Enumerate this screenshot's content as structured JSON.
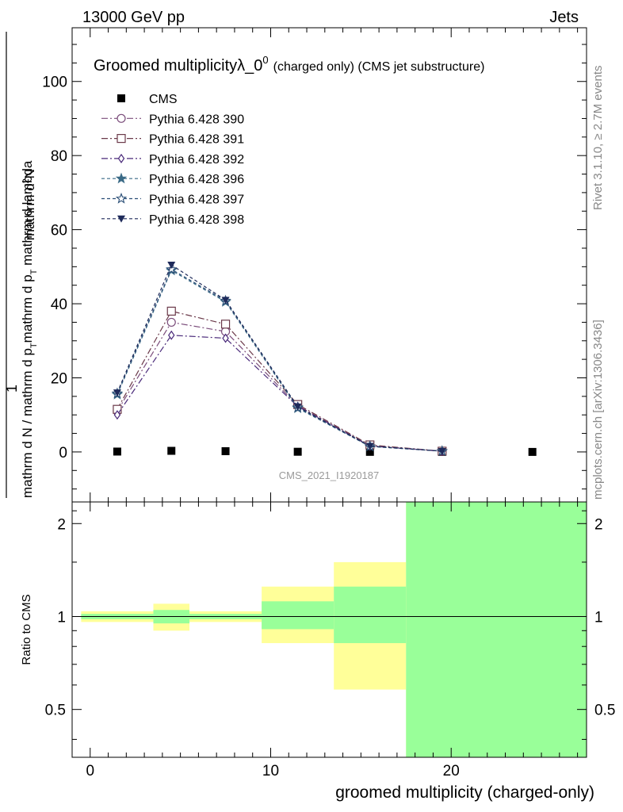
{
  "header": {
    "left": "13000 GeV pp",
    "right": "Jets"
  },
  "side_labels": {
    "rivet": "Rivet 3.1.10, ≥ 2.7M events",
    "mcplots": "mcplots.cern.ch [arXiv:1306.3436]"
  },
  "watermark": "CMS_2021_I1920187",
  "chart_data": [
    {
      "type": "line",
      "title": "Groomed multiplicityλ_0",
      "title_sup": "0",
      "subtitle": "(charged only) (CMS jet substructure)",
      "ylabel_top": "1",
      "ylabel_num": "mathrm d",
      "ylabel_num_sup": "2",
      "ylabel_num_tail": "N",
      "ylabel_den": "mathrm d N / mathrm d p",
      "ylabel_den_sub": "T",
      "ylabel_den_tail": "mathrm d p",
      "ylabel_den_sub2": "T",
      "ylabel_den_end": " mathrm d lambda",
      "xlim": [
        -1,
        27.5
      ],
      "ylim": [
        -13.5,
        114.5
      ],
      "yticks": [
        0,
        20,
        40,
        60,
        80,
        100
      ],
      "yticklabels": [
        "0",
        "20",
        "40",
        "60",
        "80",
        "100"
      ],
      "legend": "top-left",
      "series": [
        {
          "name": "CMS",
          "color": "#000000",
          "marker": "square-filled",
          "x": [
            1.5,
            4.5,
            7.5,
            11.5,
            15.5,
            19.5,
            24.5
          ],
          "y": [
            0.1,
            0.3,
            0.2,
            0.05,
            0.02,
            0.01,
            0.005
          ]
        },
        {
          "name": "Pythia 6.428 390",
          "color": "#7b4d7b",
          "marker": "circle-open",
          "dash": "8,3,2,3",
          "x": [
            1.5,
            4.5,
            7.5,
            11.5,
            15.5,
            19.5
          ],
          "y": [
            11.0,
            35.0,
            32.5,
            12.5,
            1.7,
            0.2
          ]
        },
        {
          "name": "Pythia 6.428 391",
          "color": "#6b3a4a",
          "marker": "square-open",
          "dash": "8,3,2,3",
          "x": [
            1.5,
            4.5,
            7.5,
            11.5,
            15.5,
            19.5
          ],
          "y": [
            11.5,
            38.0,
            34.5,
            12.8,
            1.9,
            0.2
          ]
        },
        {
          "name": "Pythia 6.428 392",
          "color": "#4a2a7a",
          "marker": "diamond-open",
          "dash": "8,3,2,3",
          "x": [
            1.5,
            4.5,
            7.5,
            11.5,
            15.5,
            19.5
          ],
          "y": [
            10.0,
            31.5,
            30.7,
            12.3,
            1.6,
            0.2
          ]
        },
        {
          "name": "Pythia 6.428 396",
          "color": "#3a6a86",
          "marker": "star-filled",
          "dash": "4,3",
          "x": [
            1.5,
            4.5,
            7.5,
            11.5,
            15.5,
            19.5
          ],
          "y": [
            15.5,
            49.0,
            40.5,
            11.8,
            1.5,
            0.2
          ]
        },
        {
          "name": "Pythia 6.428 397",
          "color": "#2a4e76",
          "marker": "star-open",
          "dash": "4,3",
          "x": [
            1.5,
            4.5,
            7.5,
            11.5,
            15.5,
            19.5
          ],
          "y": [
            15.8,
            49.3,
            40.8,
            12.0,
            1.5,
            0.2
          ]
        },
        {
          "name": "Pythia 6.428 398",
          "color": "#1e2a5a",
          "marker": "triangle-down-filled",
          "dash": "4,3",
          "x": [
            1.5,
            4.5,
            7.5,
            11.5,
            15.5,
            19.5
          ],
          "y": [
            16.0,
            50.5,
            41.0,
            12.2,
            1.6,
            0.2
          ]
        }
      ]
    },
    {
      "type": "area",
      "ylabel": "Ratio to CMS",
      "xlabel": "groomed multiplicity (charged-only)",
      "xlim": [
        -1,
        27.5
      ],
      "ylim": [
        0.35,
        2.35
      ],
      "xticks": [
        0,
        10,
        20
      ],
      "xticklabels": [
        "0",
        "10",
        "20"
      ],
      "yticks": [
        0.5,
        1,
        2
      ],
      "yticklabels": [
        "0.5",
        "1",
        "2"
      ],
      "reference_line": 1,
      "bands": {
        "total_color": "#ffff99",
        "stat_color": "#99ff99",
        "bins": [
          {
            "lo": -0.5,
            "hi": 3.5,
            "total": [
              0.96,
              1.04
            ],
            "stat": [
              0.98,
              1.02
            ]
          },
          {
            "lo": 3.5,
            "hi": 5.5,
            "total": [
              0.9,
              1.1
            ],
            "stat": [
              0.95,
              1.05
            ]
          },
          {
            "lo": 5.5,
            "hi": 9.5,
            "total": [
              0.96,
              1.04
            ],
            "stat": [
              0.98,
              1.02
            ]
          },
          {
            "lo": 9.5,
            "hi": 13.5,
            "total": [
              0.82,
              1.25
            ],
            "stat": [
              0.91,
              1.12
            ]
          },
          {
            "lo": 13.5,
            "hi": 17.5,
            "total": [
              0.58,
              1.5
            ],
            "stat": [
              0.82,
              1.25
            ]
          },
          {
            "lo": 17.5,
            "hi": 27.5,
            "total": [
              0.35,
              2.35
            ],
            "stat": [
              0.35,
              2.35
            ]
          }
        ]
      }
    }
  ]
}
